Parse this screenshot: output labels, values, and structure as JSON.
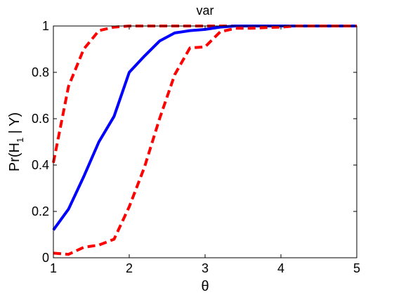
{
  "chart_data": {
    "type": "line",
    "title": "var",
    "xlabel": "θ",
    "ylabel": {
      "prefix": "Pr(H",
      "subscript": "1",
      "suffix": " | Y)"
    },
    "xlim": [
      1,
      5
    ],
    "ylim": [
      0,
      1
    ],
    "xticks": [
      1,
      2,
      3,
      4,
      5
    ],
    "yticks": [
      0,
      0.2,
      0.4,
      0.6,
      0.8,
      1
    ],
    "ytick_labels": [
      "0",
      "0.2",
      "0.4",
      "0.6",
      "0.8",
      "1"
    ],
    "grid": false,
    "legend": "none",
    "series": [
      {
        "color": "#ff0000",
        "style": "dashed",
        "x": [
          1.0,
          1.2,
          1.4,
          1.6,
          1.8,
          2.0,
          2.2,
          2.4,
          2.6,
          2.8,
          3.0,
          3.2,
          3.4,
          3.6,
          3.8,
          4.0,
          4.2,
          4.4,
          4.6,
          4.8,
          5.0
        ],
        "y": [
          0.41,
          0.74,
          0.9,
          0.98,
          0.995,
          1.0,
          1.0,
          1.0,
          1.0,
          1.0,
          1.0,
          1.0,
          1.0,
          1.0,
          1.0,
          1.0,
          1.0,
          1.0,
          1.0,
          1.0,
          1.0
        ]
      },
      {
        "color": "#0000ff",
        "style": "solid",
        "x": [
          1.0,
          1.2,
          1.4,
          1.6,
          1.8,
          2.0,
          2.2,
          2.4,
          2.6,
          2.8,
          3.0,
          3.2,
          3.4,
          3.6,
          3.8,
          4.0,
          4.2,
          4.4,
          4.6,
          4.8,
          5.0
        ],
        "y": [
          0.12,
          0.21,
          0.35,
          0.5,
          0.61,
          0.8,
          0.87,
          0.935,
          0.97,
          0.98,
          0.985,
          0.995,
          1.0,
          1.0,
          1.0,
          1.0,
          1.0,
          1.0,
          1.0,
          1.0,
          1.0
        ]
      },
      {
        "color": "#ff0000",
        "style": "dashed",
        "x": [
          1.0,
          1.2,
          1.4,
          1.6,
          1.8,
          2.0,
          2.2,
          2.4,
          2.6,
          2.8,
          3.0,
          3.2,
          3.4,
          3.6,
          3.8,
          4.0,
          4.2,
          4.4,
          4.6,
          4.8,
          5.0
        ],
        "y": [
          0.02,
          0.015,
          0.045,
          0.055,
          0.08,
          0.22,
          0.39,
          0.6,
          0.79,
          0.905,
          0.91,
          0.975,
          0.99,
          0.99,
          0.993,
          0.995,
          1.0,
          1.0,
          1.0,
          1.0,
          1.0
        ]
      }
    ]
  }
}
